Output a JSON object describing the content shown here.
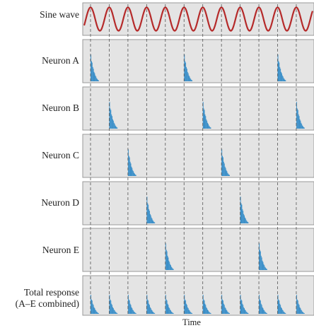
{
  "rows": [
    {
      "label": "Sine wave",
      "type": "sine"
    },
    {
      "label": "Neuron A",
      "type": "neuron",
      "spike_cycles": [
        0,
        5,
        10
      ]
    },
    {
      "label": "Neuron B",
      "type": "neuron",
      "spike_cycles": [
        1,
        6,
        11
      ]
    },
    {
      "label": "Neuron C",
      "type": "neuron",
      "spike_cycles": [
        2,
        7
      ]
    },
    {
      "label": "Neuron D",
      "type": "neuron",
      "spike_cycles": [
        3,
        8
      ]
    },
    {
      "label": "Neuron E",
      "type": "neuron",
      "spike_cycles": [
        4,
        9
      ]
    },
    {
      "label": "Total response",
      "label_line2": "(A–E combined)",
      "type": "total",
      "spike_cycles": [
        0,
        1,
        2,
        3,
        4,
        5,
        6,
        7,
        8,
        9,
        10,
        11
      ]
    }
  ],
  "x_axis_label": "Time",
  "sine_cycles": 12,
  "colors": {
    "sine": "#b52a2a",
    "panel_bg": "#e4e4e4",
    "panel_border": "#9a9a9a",
    "spike": "#3b8fc9",
    "dashed_line": "#555555"
  }
}
